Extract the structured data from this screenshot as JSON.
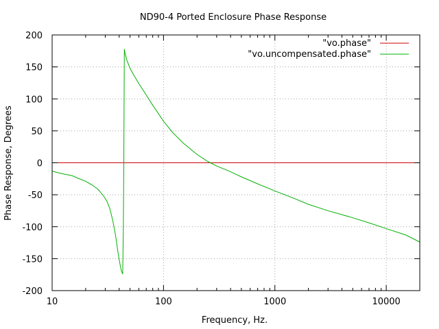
{
  "chart_data": {
    "type": "line",
    "title": "ND90-4 Ported Enclosure Phase Response",
    "xlabel": "Frequency, Hz.",
    "ylabel": "Phase Response, Degrees",
    "xscale": "log",
    "xlim": [
      10,
      20000
    ],
    "ylim": [
      -200,
      200
    ],
    "grid": true,
    "legend_position": "top-right",
    "x_ticks": [
      {
        "value": 10,
        "label": "10"
      },
      {
        "value": 100,
        "label": "100"
      },
      {
        "value": 1000,
        "label": "1000"
      },
      {
        "value": 10000,
        "label": "10000"
      }
    ],
    "y_ticks": [
      {
        "value": -200,
        "label": "-200"
      },
      {
        "value": -150,
        "label": "-150"
      },
      {
        "value": -100,
        "label": "-100"
      },
      {
        "value": -50,
        "label": "-50"
      },
      {
        "value": 0,
        "label": "0"
      },
      {
        "value": 50,
        "label": "50"
      },
      {
        "value": 100,
        "label": "100"
      },
      {
        "value": 150,
        "label": "150"
      },
      {
        "value": 200,
        "label": "200"
      }
    ],
    "series": [
      {
        "name": "\"vo.phase\"",
        "color": "#cc0000",
        "x": [
          10,
          20000
        ],
        "y": [
          0,
          0
        ]
      },
      {
        "name": "\"vo.uncompensated.phase\"",
        "color": "#00b000",
        "x": [
          10,
          11,
          13,
          15,
          17,
          20,
          23,
          26,
          29,
          31,
          33,
          35,
          37,
          39,
          41,
          42,
          43,
          43.6,
          44,
          44.5,
          45,
          47,
          50,
          55,
          60,
          70,
          80,
          90,
          100,
          120,
          150,
          200,
          250,
          300,
          330,
          400,
          500,
          700,
          1000,
          1500,
          2000,
          3000,
          5000,
          7000,
          10000,
          15000,
          20000
        ],
        "y": [
          -13,
          -15,
          -18,
          -20,
          -24,
          -29,
          -35,
          -42,
          -52,
          -60,
          -72,
          -90,
          -112,
          -140,
          -162,
          -170,
          -174,
          -100,
          0,
          178,
          172,
          160,
          148,
          135,
          124,
          106,
          90,
          77,
          65,
          48,
          31,
          13,
          2,
          -5,
          -8,
          -14,
          -22,
          -33,
          -44,
          -56,
          -65,
          -75,
          -86,
          -94,
          -103,
          -113,
          -124
        ]
      }
    ]
  }
}
